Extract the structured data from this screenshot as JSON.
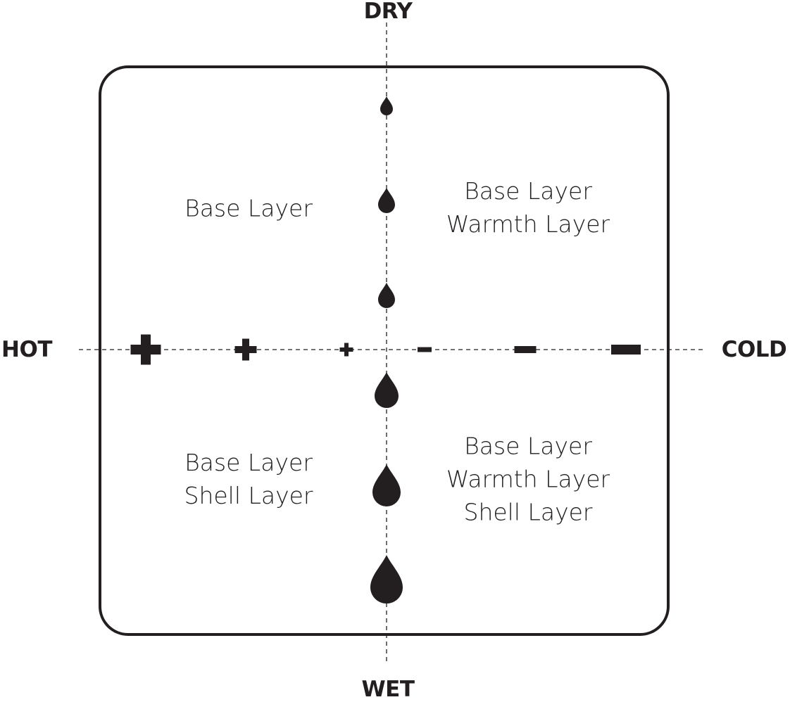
{
  "axes": {
    "top": "DRY",
    "bottom": "WET",
    "left": "HOT",
    "right": "COLD"
  },
  "quadrants": {
    "top_left": [
      "Base Layer"
    ],
    "top_right": [
      "Base Layer",
      "Warmth Layer"
    ],
    "bottom_left": [
      "Base Layer",
      "Shell Layer"
    ],
    "bottom_right": [
      "Base Layer",
      "Warmth Layer",
      "Shell Layer"
    ]
  },
  "markers": {
    "moisture_drops": [
      1,
      2,
      2,
      3,
      4,
      5
    ],
    "heat_plus": [
      3,
      2,
      1
    ],
    "cold_minus": [
      1,
      2,
      3
    ]
  },
  "colors": {
    "ink": "#231f20",
    "background": "#ffffff"
  }
}
